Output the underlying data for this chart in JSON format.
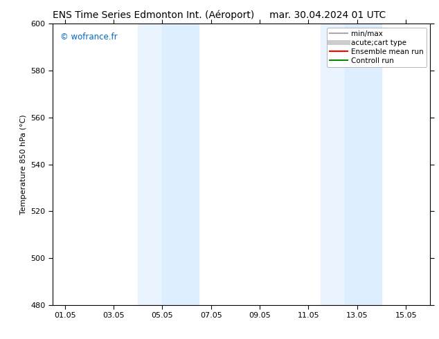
{
  "title_left": "ENS Time Series Edmonton Int. (Aéroport)",
  "title_right": "mar. 30.04.2024 01 UTC",
  "ylabel": "Temperature 850 hPa (°C)",
  "ylim": [
    480,
    600
  ],
  "yticks": [
    480,
    500,
    520,
    540,
    560,
    580,
    600
  ],
  "xtick_labels": [
    "01.05",
    "03.05",
    "05.05",
    "07.05",
    "09.05",
    "11.05",
    "13.05",
    "15.05"
  ],
  "xtick_positions": [
    0,
    2,
    4,
    6,
    8,
    10,
    12,
    14
  ],
  "xlim": [
    -0.5,
    15.0
  ],
  "shaded_regions": [
    {
      "x_start": 3.0,
      "x_end": 4.0,
      "color": "#ddeeff",
      "alpha": 0.6
    },
    {
      "x_start": 4.0,
      "x_end": 5.5,
      "color": "#ddeeff",
      "alpha": 1.0
    },
    {
      "x_start": 10.5,
      "x_end": 11.5,
      "color": "#ddeeff",
      "alpha": 0.6
    },
    {
      "x_start": 11.5,
      "x_end": 13.0,
      "color": "#ddeeff",
      "alpha": 1.0
    }
  ],
  "watermark_text": "© wofrance.fr",
  "watermark_color": "#0066cc",
  "legend_entries": [
    {
      "label": "min/max",
      "color": "#aaaaaa",
      "lw": 1.5,
      "linestyle": "-"
    },
    {
      "label": "acute;cart type",
      "color": "#cccccc",
      "lw": 5,
      "linestyle": "-"
    },
    {
      "label": "Ensemble mean run",
      "color": "#ff0000",
      "lw": 1.5,
      "linestyle": "-"
    },
    {
      "label": "Controll run",
      "color": "#008800",
      "lw": 1.5,
      "linestyle": "-"
    }
  ],
  "bg_color": "#ffffff",
  "plot_bg_color": "#ffffff",
  "title_fontsize": 10,
  "tick_fontsize": 8,
  "legend_fontsize": 7.5
}
